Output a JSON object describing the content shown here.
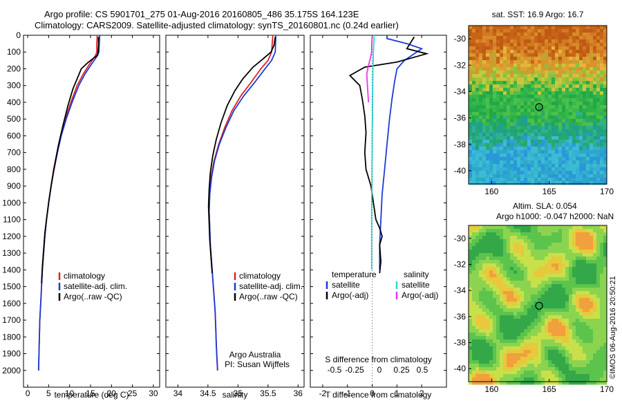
{
  "header": {
    "title_line1": "Argo profile: CS 5901701_275 01-Aug-2016 20160805_486 35.175S 164.123E",
    "title_line2": "Climatology: CARS2009. Satellite-adjusted climatology: synTS_20160801.nc (0.24d earlier)"
  },
  "stamp": "©IMOS 06-Aug-2016 20:50:21",
  "colors": {
    "climatology": "#dd2222",
    "satellite": "#1a3ad8",
    "argo": "#000000",
    "salinity_satellite": "#22dddd",
    "salinity_argo": "#ee33ee"
  },
  "chart_data": [
    {
      "type": "line",
      "name_key": "temperature-profile",
      "xlabel": "temperature (deg C)",
      "ylabel": "",
      "xlim": [
        -1,
        31.5
      ],
      "ylim": [
        2100,
        0
      ],
      "xticks": [
        0,
        5,
        10,
        15,
        20,
        25,
        30
      ],
      "yticks": [
        0,
        100,
        200,
        300,
        400,
        500,
        600,
        700,
        800,
        900,
        1000,
        1100,
        1200,
        1300,
        1400,
        1500,
        1600,
        1700,
        1800,
        1900,
        2000
      ],
      "legend": [
        "climatology",
        "satellite-adj. clim.",
        "Argo(..raw -QC)"
      ],
      "series": [
        {
          "name": "climatology",
          "color": "#dd2222",
          "points": [
            [
              16.6,
              0
            ],
            [
              16.5,
              50
            ],
            [
              16.5,
              100
            ],
            [
              16.2,
              120
            ],
            [
              14.8,
              170
            ],
            [
              13.3,
              230
            ],
            [
              11.8,
              300
            ],
            [
              10.3,
              400
            ],
            [
              9.0,
              500
            ],
            [
              7.9,
              600
            ],
            [
              7.0,
              700
            ],
            [
              6.2,
              800
            ],
            [
              5.6,
              900
            ],
            [
              5.0,
              1000
            ],
            [
              4.5,
              1100
            ],
            [
              4.1,
              1200
            ],
            [
              3.8,
              1300
            ],
            [
              3.5,
              1400
            ],
            [
              3.3,
              1500
            ],
            [
              3.1,
              1600
            ],
            [
              2.9,
              1700
            ],
            [
              2.8,
              1800
            ],
            [
              2.7,
              1900
            ],
            [
              2.6,
              2000
            ]
          ]
        },
        {
          "name": "satellite-adj. clim.",
          "color": "#1a3ad8",
          "points": [
            [
              17.2,
              0
            ],
            [
              17.1,
              50
            ],
            [
              17.0,
              100
            ],
            [
              16.7,
              120
            ],
            [
              15.3,
              170
            ],
            [
              13.7,
              230
            ],
            [
              12.2,
              300
            ],
            [
              10.6,
              400
            ],
            [
              9.2,
              500
            ],
            [
              8.0,
              600
            ],
            [
              7.1,
              700
            ],
            [
              6.3,
              800
            ],
            [
              5.6,
              900
            ],
            [
              5.0,
              1000
            ],
            [
              4.5,
              1100
            ],
            [
              4.1,
              1200
            ],
            [
              3.8,
              1300
            ],
            [
              3.5,
              1400
            ],
            [
              3.3,
              1500
            ],
            [
              3.1,
              1600
            ],
            [
              2.9,
              1700
            ],
            [
              2.8,
              1800
            ],
            [
              2.7,
              1900
            ],
            [
              2.6,
              2000
            ]
          ]
        },
        {
          "name": "Argo(..raw -QC)",
          "color": "#000000",
          "points": [
            [
              16.9,
              10
            ],
            [
              16.9,
              60
            ],
            [
              16.8,
              100
            ],
            [
              16.6,
              120
            ],
            [
              14.5,
              160
            ],
            [
              12.8,
              200
            ],
            [
              11.8,
              260
            ],
            [
              10.8,
              320
            ],
            [
              9.6,
              420
            ],
            [
              8.4,
              540
            ],
            [
              7.3,
              660
            ],
            [
              6.4,
              780
            ],
            [
              5.7,
              880
            ],
            [
              5.1,
              980
            ],
            [
              4.6,
              1080
            ],
            [
              4.1,
              1180
            ],
            [
              3.8,
              1280
            ],
            [
              3.5,
              1380
            ],
            [
              3.3,
              1480
            ]
          ]
        }
      ]
    },
    {
      "type": "line",
      "name_key": "salinity-profile",
      "xlabel": "salinity",
      "ylabel": "",
      "xlim": [
        33.8,
        36.1
      ],
      "ylim": [
        2100,
        0
      ],
      "xticks": [
        34,
        34.5,
        35,
        35.5,
        36
      ],
      "legend": [
        "climatology",
        "satellite-adj. clim.",
        "Argo(..raw -QC)"
      ],
      "annotation": [
        "Argo Australia",
        "PI: Susan Wijffels"
      ],
      "series": [
        {
          "name": "climatology",
          "color": "#dd2222",
          "points": [
            [
              35.58,
              0
            ],
            [
              35.56,
              100
            ],
            [
              35.5,
              150
            ],
            [
              35.38,
              200
            ],
            [
              35.22,
              280
            ],
            [
              35.05,
              360
            ],
            [
              34.9,
              450
            ],
            [
              34.78,
              550
            ],
            [
              34.68,
              650
            ],
            [
              34.6,
              750
            ],
            [
              34.55,
              850
            ],
            [
              34.53,
              950
            ],
            [
              34.52,
              1050
            ],
            [
              34.53,
              1150
            ],
            [
              34.54,
              1250
            ],
            [
              34.56,
              1350
            ],
            [
              34.58,
              1450
            ],
            [
              34.6,
              1550
            ],
            [
              34.62,
              1650
            ],
            [
              34.63,
              1750
            ],
            [
              34.64,
              1850
            ],
            [
              34.66,
              2000
            ]
          ]
        },
        {
          "name": "satellite-adj. clim.",
          "color": "#1a3ad8",
          "points": [
            [
              35.63,
              0
            ],
            [
              35.62,
              100
            ],
            [
              35.56,
              150
            ],
            [
              35.45,
              200
            ],
            [
              35.28,
              280
            ],
            [
              35.1,
              360
            ],
            [
              34.93,
              450
            ],
            [
              34.8,
              550
            ],
            [
              34.69,
              650
            ],
            [
              34.61,
              750
            ],
            [
              34.56,
              850
            ],
            [
              34.53,
              950
            ],
            [
              34.52,
              1050
            ],
            [
              34.53,
              1150
            ],
            [
              34.54,
              1250
            ],
            [
              34.56,
              1350
            ],
            [
              34.58,
              1450
            ],
            [
              34.6,
              1550
            ],
            [
              34.62,
              1650
            ],
            [
              34.63,
              1750
            ],
            [
              34.64,
              1850
            ],
            [
              34.66,
              2000
            ]
          ]
        },
        {
          "name": "Argo(..raw -QC)",
          "color": "#000000",
          "points": [
            [
              35.62,
              10
            ],
            [
              35.6,
              60
            ],
            [
              35.55,
              100
            ],
            [
              35.42,
              140
            ],
            [
              35.25,
              190
            ],
            [
              35.08,
              260
            ],
            [
              34.95,
              330
            ],
            [
              34.82,
              420
            ],
            [
              34.72,
              520
            ],
            [
              34.64,
              620
            ],
            [
              34.58,
              720
            ],
            [
              34.54,
              820
            ],
            [
              34.52,
              920
            ],
            [
              34.51,
              1020
            ],
            [
              34.52,
              1120
            ],
            [
              34.53,
              1220
            ],
            [
              34.55,
              1320
            ],
            [
              34.57,
              1420
            ]
          ]
        }
      ]
    },
    {
      "type": "line",
      "name_key": "difference-profile",
      "xlabel": "T difference from climatology",
      "xlabel_top": "S difference from climatology",
      "xlim": [
        -2.5,
        3.0
      ],
      "ylim": [
        2100,
        0
      ],
      "xticks": [
        -2,
        -1,
        0,
        1,
        2
      ],
      "xtick_labels": [
        "-2",
        "-1",
        "0",
        "1",
        "2"
      ],
      "sticks": [
        -0.5,
        -0.25,
        0,
        0.25,
        0.5
      ],
      "stick_labels": [
        "-0.5",
        "-0.25",
        "0",
        "0.25",
        "0.5"
      ],
      "legend_temperature_header": "temperature",
      "legend_salinity_header": "salinity",
      "legend_temperature": [
        "satellite",
        "Argo(-adj)"
      ],
      "legend_salinity": [
        "satellite",
        "Argo(-adj)"
      ],
      "series": [
        {
          "name": "T satellite",
          "color": "#1a3ad8",
          "points": [
            [
              0.6,
              0
            ],
            [
              0.6,
              20
            ],
            [
              1.4,
              50
            ],
            [
              2.0,
              80
            ],
            [
              1.3,
              150
            ],
            [
              1.0,
              200
            ],
            [
              0.9,
              280
            ],
            [
              0.8,
              380
            ],
            [
              0.7,
              500
            ],
            [
              0.6,
              650
            ],
            [
              0.5,
              800
            ],
            [
              0.4,
              950
            ],
            [
              0.35,
              1100
            ],
            [
              0.3,
              1250
            ],
            [
              0.3,
              1400
            ]
          ]
        },
        {
          "name": "T Argo(-adj)",
          "color": "#000000",
          "points": [
            [
              1.7,
              10
            ],
            [
              1.4,
              80
            ],
            [
              2.2,
              110
            ],
            [
              1.0,
              160
            ],
            [
              -0.3,
              190
            ],
            [
              -0.9,
              240
            ],
            [
              -0.5,
              300
            ],
            [
              -0.4,
              380
            ],
            [
              -0.3,
              480
            ],
            [
              -0.25,
              580
            ],
            [
              -0.3,
              700
            ],
            [
              -0.25,
              800
            ],
            [
              -0.05,
              900
            ],
            [
              0.05,
              1000
            ],
            [
              0.15,
              1100
            ],
            [
              0.3,
              1150
            ],
            [
              0.4,
              1200
            ],
            [
              0.3,
              1250
            ],
            [
              0.35,
              1350
            ],
            [
              0.3,
              1420
            ]
          ]
        },
        {
          "name": "S satellite",
          "color": "#22dddd",
          "points": [
            [
              0.08,
              0
            ],
            [
              0.05,
              100
            ],
            [
              0.03,
              200
            ],
            [
              0.02,
              300
            ],
            [
              0.01,
              400
            ],
            [
              0.01,
              500
            ],
            [
              0.0,
              600
            ],
            [
              0.0,
              700
            ],
            [
              -0.01,
              800
            ],
            [
              -0.01,
              900
            ],
            [
              -0.02,
              1000
            ],
            [
              -0.02,
              1100
            ],
            [
              -0.02,
              1200
            ],
            [
              -0.02,
              1300
            ],
            [
              -0.02,
              1400
            ]
          ]
        },
        {
          "name": "S Argo(-adj)",
          "color": "#ee33ee",
          "points": [
            [
              0.0,
              10
            ],
            [
              -0.02,
              60
            ],
            [
              -0.02,
              100
            ],
            [
              -0.08,
              140
            ],
            [
              -0.15,
              180
            ],
            [
              -0.22,
              230
            ],
            [
              -0.2,
              280
            ],
            [
              -0.18,
              330
            ],
            [
              -0.15,
              400
            ]
          ]
        }
      ]
    },
    {
      "type": "heatmap",
      "name_key": "sst-map",
      "title": "sat. SST: 16.9  Argo: 16.7",
      "xlim": [
        158,
        170
      ],
      "ylim": [
        -41,
        -29
      ],
      "xticks": [
        160,
        165,
        170
      ],
      "yticks": [
        -30,
        -32,
        -34,
        -36,
        -38,
        -40
      ],
      "marker": {
        "lon": 164.123,
        "lat": -35.175
      }
    },
    {
      "type": "heatmap",
      "name_key": "sla-map",
      "title_line1": "Altim. SLA: 0.054",
      "title_line2": "Argo h1000: -0.047 h2000: NaN",
      "xlim": [
        158,
        170
      ],
      "ylim": [
        -41,
        -29
      ],
      "xticks": [
        160,
        165,
        170
      ],
      "yticks": [
        -30,
        -32,
        -34,
        -36,
        -38,
        -40
      ],
      "marker": {
        "lon": 164.123,
        "lat": -35.175
      }
    }
  ]
}
